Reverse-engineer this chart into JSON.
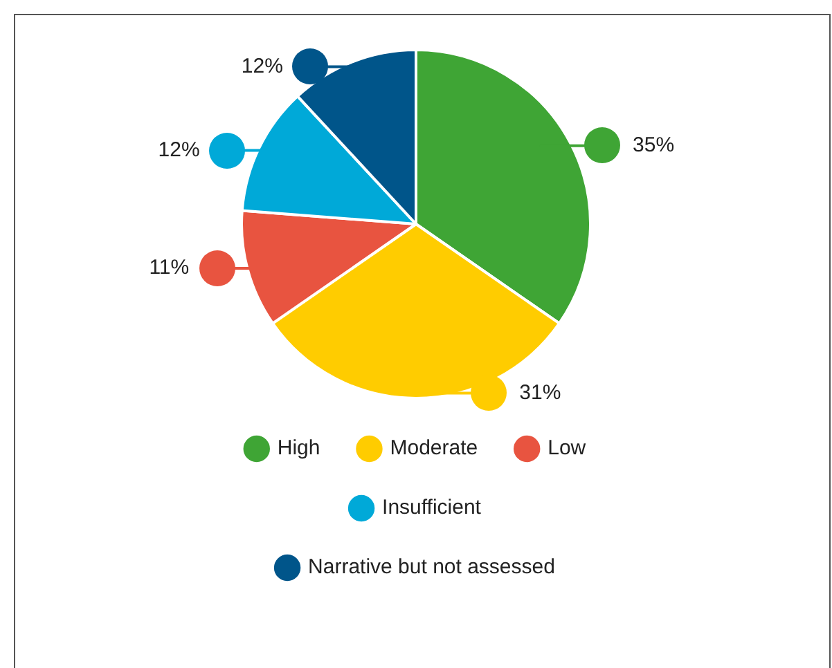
{
  "chart_data": {
    "type": "pie",
    "categories": [
      "High",
      "Moderate",
      "Low",
      "Insufficient",
      "Narrative but not assessed"
    ],
    "values": [
      35,
      31,
      11,
      12,
      12
    ],
    "colors": [
      "#3fa535",
      "#ffcc00",
      "#e85440",
      "#00a9d8",
      "#00558a"
    ],
    "value_labels": [
      "35%",
      "31%",
      "11%",
      "12%",
      "12%"
    ],
    "legend": "bottom"
  }
}
